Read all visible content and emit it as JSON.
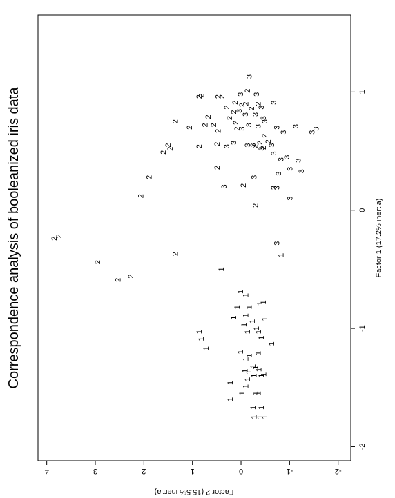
{
  "chart_data": {
    "type": "scatter",
    "title": "Correspondence analysis of booleanized iris data",
    "x_label": "Factor 1 (17.2% inertia)",
    "y_label": "Factor 2 (15.5% inertia)",
    "xlim": [
      -2.12,
      1.65
    ],
    "ylim": [
      -2.26,
      4.18
    ],
    "xticks": [
      -2,
      -1,
      0,
      1
    ],
    "yticks": [
      -2,
      -1,
      0,
      1,
      2,
      3,
      4
    ],
    "series": [
      {
        "name": "1",
        "color": "#000000",
        "x": [
          -1.75,
          -1.75,
          -1.75,
          -1.67,
          -1.67,
          -1.55,
          -1.55,
          -1.6,
          -1.55,
          -1.49,
          -1.46,
          -1.43,
          -1.4,
          -1.37,
          -1.36,
          -1.35,
          -1.4,
          -1.39,
          -1.32,
          -1.33,
          -1.26,
          -1.2,
          -1.23,
          -1.21,
          -1.13,
          -1.03,
          -1.09,
          -1.17,
          -1.08,
          -1.03,
          -0.97,
          -1.03,
          -1.0,
          -0.92,
          -0.91,
          -0.89,
          -0.94,
          -0.82,
          -0.82,
          -0.79,
          -0.72,
          -0.69,
          -0.78,
          -0.5,
          -0.38
        ],
        "values": [
          -0.28,
          -0.4,
          -0.5,
          -0.26,
          -0.43,
          -0.31,
          -0.36,
          0.21,
          -0.03,
          -0.11,
          0.21,
          -0.14,
          -0.28,
          -0.17,
          -0.09,
          -0.38,
          -0.43,
          -0.48,
          -0.26,
          -0.31,
          -0.11,
          0,
          -0.18,
          -0.36,
          -0.64,
          0.85,
          0.81,
          0.71,
          -0.43,
          -0.37,
          -0.07,
          -0.14,
          -0.33,
          -0.5,
          0.14,
          -0.11,
          -0.24,
          0.07,
          -0.18,
          -0.4,
          -0.11,
          0,
          -0.47,
          0.4,
          -0.83
        ]
      },
      {
        "name": "2",
        "color": "#000000",
        "x": [
          -0.24,
          -0.22,
          -0.44,
          -0.59,
          -0.56,
          -0.37,
          0.12,
          0.28,
          0.36,
          0.49,
          0.52,
          0.55,
          0.54,
          0.56,
          0.75,
          0.67,
          0.7,
          0.72,
          0.72,
          0.74,
          0.69,
          0.78,
          0.79,
          0.96,
          0.97,
          0.96,
          0.96,
          0.89,
          0.04,
          0.21,
          0.83,
          0.87,
          0.91,
          1.01,
          0.54,
          0.53,
          0.57,
          0.63,
          0.58,
          0.9,
          0.86,
          0.9
        ],
        "values": [
          3.84,
          3.74,
          2.94,
          2.52,
          2.26,
          1.34,
          2.05,
          1.88,
          0.48,
          1.59,
          1.45,
          1.49,
          0.85,
          0.48,
          1.34,
          0.46,
          1.05,
          0.73,
          0.55,
          0.1,
          0.07,
          0.23,
          0.67,
          0.85,
          0.8,
          0.46,
          0.38,
          -0.03,
          -0.31,
          -0.06,
          0.14,
          0.28,
          0.11,
          -0.14,
          -0.31,
          -0.47,
          -0.4,
          -0.5,
          -0.57,
          -0.11,
          -0.23,
          -0.36
        ]
      },
      {
        "name": "3",
        "color": "#000000",
        "x": [
          1.13,
          0.98,
          0.98,
          0.91,
          0.87,
          0.84,
          0.81,
          0.81,
          0.78,
          0.69,
          0.72,
          0.71,
          0.75,
          0.7,
          0.66,
          0.71,
          0.69,
          0.66,
          0.54,
          0.57,
          0.55,
          0.55,
          0.52,
          0.55,
          0.48,
          0.43,
          0.31,
          0.35,
          0.42,
          0.33,
          0.45,
          0.2,
          0.28,
          0.19,
          0.19,
          0.1,
          -0.28
        ],
        "values": [
          -0.18,
          0,
          -0.33,
          -0.68,
          -0.43,
          0.03,
          -0.1,
          -0.31,
          -0.47,
          -0.03,
          -0.17,
          -0.36,
          -0.5,
          -0.75,
          -0.88,
          -1.14,
          -1.56,
          -1.47,
          0.28,
          0.14,
          -0.14,
          -0.26,
          -0.43,
          -0.64,
          -0.68,
          -0.83,
          -0.78,
          -1.02,
          -1.19,
          -1.25,
          -0.95,
          0.34,
          -0.28,
          -0.75,
          -0.68,
          -1.02,
          -0.75
        ]
      }
    ]
  }
}
